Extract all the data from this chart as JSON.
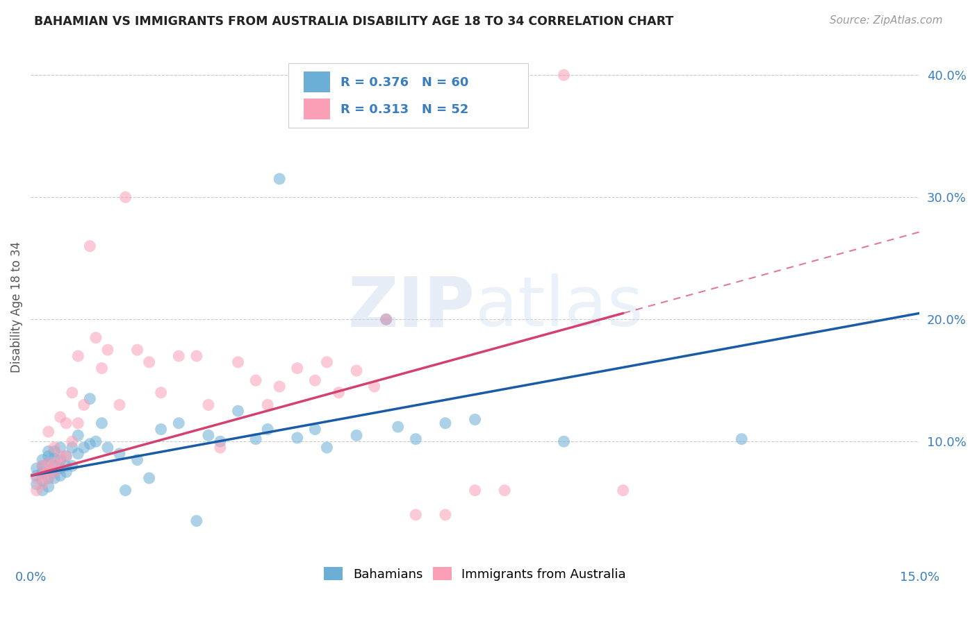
{
  "title": "BAHAMIAN VS IMMIGRANTS FROM AUSTRALIA DISABILITY AGE 18 TO 34 CORRELATION CHART",
  "source": "Source: ZipAtlas.com",
  "ylabel_left": "Disability Age 18 to 34",
  "xlim": [
    0.0,
    0.15
  ],
  "ylim": [
    0.0,
    0.42
  ],
  "yticks_right": [
    0.0,
    0.1,
    0.2,
    0.3,
    0.4
  ],
  "ytick_labels_right": [
    "",
    "10.0%",
    "20.0%",
    "30.0%",
    "40.0%"
  ],
  "blue_R": 0.376,
  "blue_N": 60,
  "pink_R": 0.313,
  "pink_N": 52,
  "blue_color": "#6baed6",
  "pink_color": "#fa9fb5",
  "blue_line_color": "#1a5ba6",
  "pink_line_color": "#d44070",
  "watermark": "ZIPatlas",
  "blue_line_x0": 0.0,
  "blue_line_y0": 0.072,
  "blue_line_x1": 0.15,
  "blue_line_y1": 0.205,
  "pink_line_x0": 0.0,
  "pink_line_y0": 0.072,
  "pink_line_x1": 0.1,
  "pink_line_y1": 0.205,
  "blue_points_x": [
    0.001,
    0.001,
    0.001,
    0.002,
    0.002,
    0.002,
    0.002,
    0.002,
    0.003,
    0.003,
    0.003,
    0.003,
    0.003,
    0.003,
    0.004,
    0.004,
    0.004,
    0.004,
    0.004,
    0.005,
    0.005,
    0.005,
    0.005,
    0.006,
    0.006,
    0.006,
    0.007,
    0.007,
    0.008,
    0.008,
    0.009,
    0.01,
    0.01,
    0.011,
    0.012,
    0.013,
    0.015,
    0.016,
    0.018,
    0.02,
    0.022,
    0.025,
    0.028,
    0.03,
    0.032,
    0.035,
    0.038,
    0.04,
    0.042,
    0.045,
    0.048,
    0.05,
    0.055,
    0.06,
    0.062,
    0.065,
    0.07,
    0.075,
    0.09,
    0.12
  ],
  "blue_points_y": [
    0.065,
    0.072,
    0.078,
    0.06,
    0.068,
    0.075,
    0.08,
    0.085,
    0.063,
    0.07,
    0.076,
    0.082,
    0.088,
    0.092,
    0.07,
    0.075,
    0.08,
    0.086,
    0.092,
    0.072,
    0.078,
    0.085,
    0.095,
    0.075,
    0.08,
    0.088,
    0.08,
    0.095,
    0.09,
    0.105,
    0.095,
    0.098,
    0.135,
    0.1,
    0.115,
    0.095,
    0.09,
    0.06,
    0.085,
    0.07,
    0.11,
    0.115,
    0.035,
    0.105,
    0.1,
    0.125,
    0.102,
    0.11,
    0.315,
    0.103,
    0.11,
    0.095,
    0.105,
    0.2,
    0.112,
    0.102,
    0.115,
    0.118,
    0.1,
    0.102
  ],
  "pink_points_x": [
    0.001,
    0.001,
    0.002,
    0.002,
    0.002,
    0.003,
    0.003,
    0.003,
    0.003,
    0.004,
    0.004,
    0.004,
    0.005,
    0.005,
    0.005,
    0.006,
    0.006,
    0.007,
    0.007,
    0.008,
    0.008,
    0.009,
    0.01,
    0.011,
    0.012,
    0.013,
    0.015,
    0.016,
    0.018,
    0.02,
    0.022,
    0.025,
    0.028,
    0.03,
    0.032,
    0.035,
    0.038,
    0.04,
    0.042,
    0.045,
    0.048,
    0.05,
    0.052,
    0.055,
    0.058,
    0.06,
    0.065,
    0.07,
    0.075,
    0.08,
    0.09,
    0.1
  ],
  "pink_points_y": [
    0.06,
    0.07,
    0.065,
    0.072,
    0.08,
    0.07,
    0.076,
    0.082,
    0.108,
    0.075,
    0.082,
    0.095,
    0.08,
    0.088,
    0.12,
    0.088,
    0.115,
    0.14,
    0.1,
    0.17,
    0.115,
    0.13,
    0.26,
    0.185,
    0.16,
    0.175,
    0.13,
    0.3,
    0.175,
    0.165,
    0.14,
    0.17,
    0.17,
    0.13,
    0.095,
    0.165,
    0.15,
    0.13,
    0.145,
    0.16,
    0.15,
    0.165,
    0.14,
    0.158,
    0.145,
    0.2,
    0.04,
    0.04,
    0.06,
    0.06,
    0.4,
    0.06
  ],
  "background_color": "#ffffff",
  "grid_color": "#cccccc"
}
